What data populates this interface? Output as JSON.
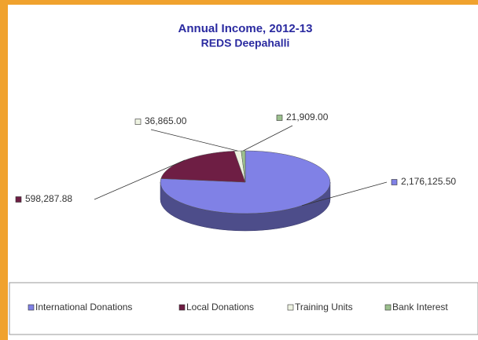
{
  "chart_data": {
    "type": "pie",
    "title": "Annual Income, 2012-13",
    "subtitle": "REDS Deepahalli",
    "categories": [
      "International Donations",
      "Local Donations",
      "Training Units",
      "Bank Interest"
    ],
    "values": [
      2176125.5,
      598287.88,
      36865,
      21909
    ],
    "value_labels": [
      "2,176,125.50",
      "598,287.88",
      "36,865.00",
      "21,909.00"
    ],
    "colors": [
      "#8081e6",
      "#6e1e44",
      "#eef3e2",
      "#9cc08e"
    ]
  }
}
